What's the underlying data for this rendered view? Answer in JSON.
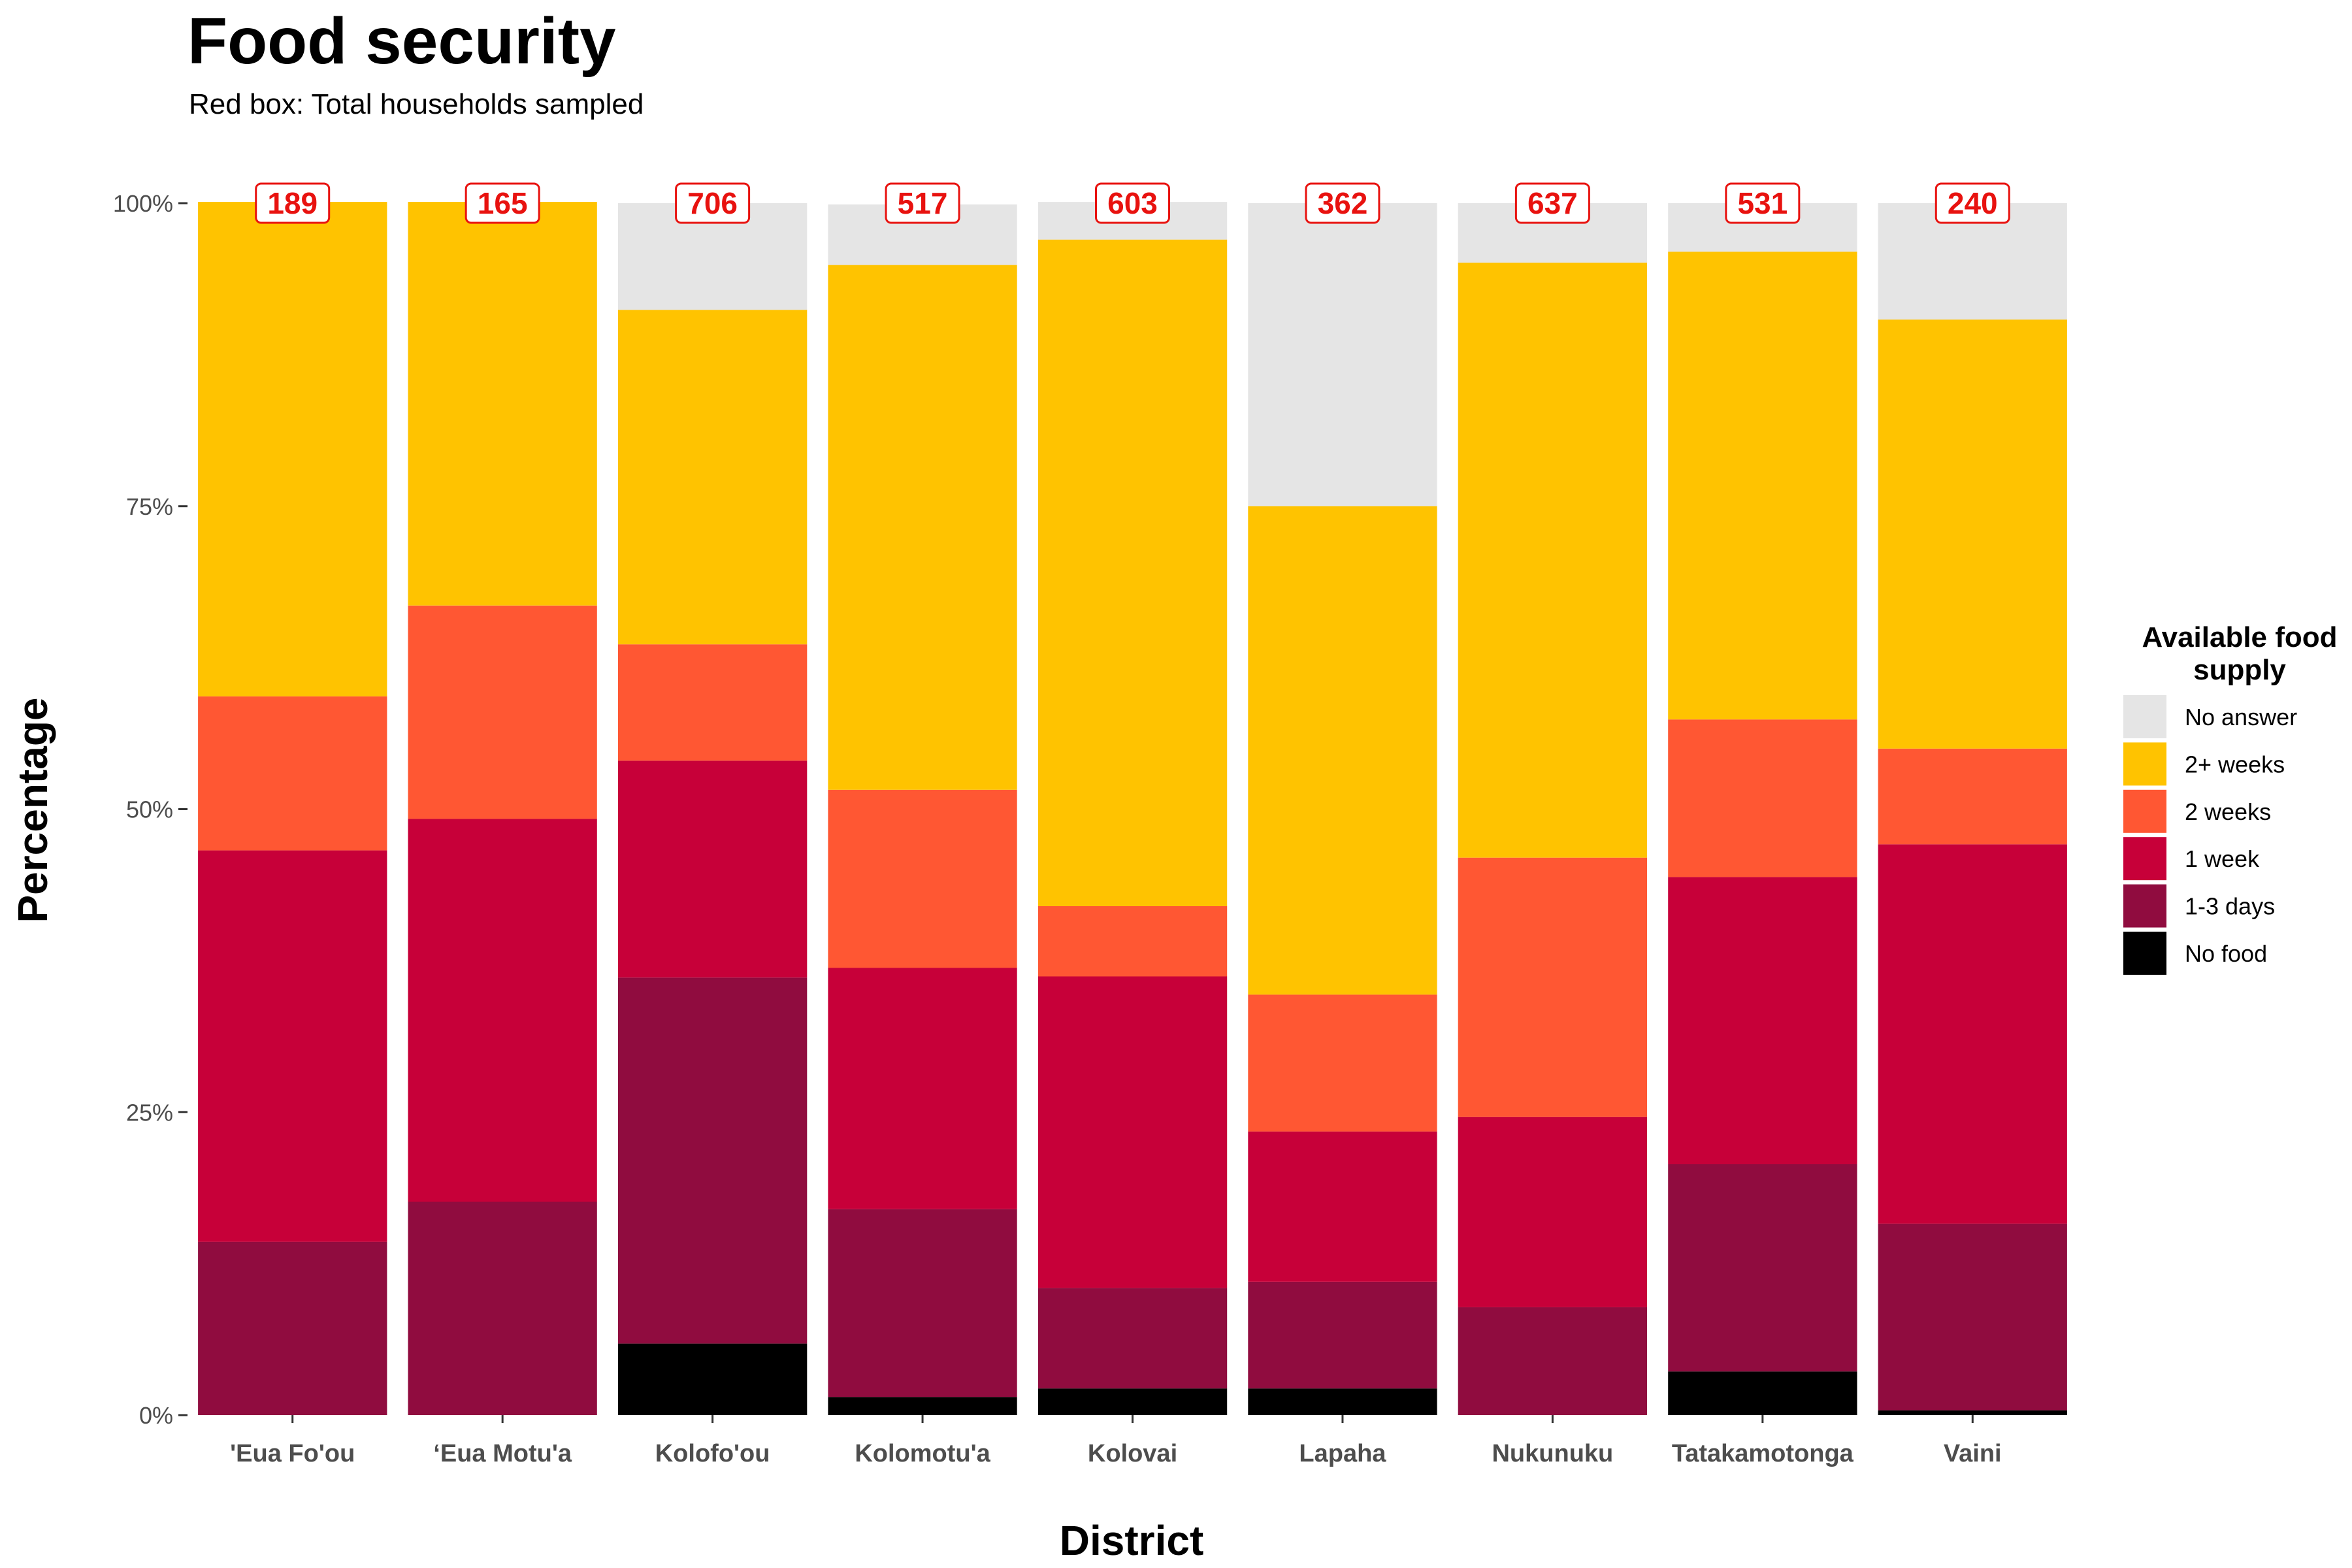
{
  "chart_data": {
    "type": "bar",
    "stacked": true,
    "normalized": true,
    "title": "Food security",
    "subtitle": "Red box: Total households sampled",
    "xlabel": "District",
    "ylabel": "Percentage",
    "ylim": [
      0,
      100
    ],
    "yticks": [
      "0%",
      "25%",
      "50%",
      "75%",
      "100%"
    ],
    "grid": false,
    "legend": {
      "title": "Available food supply",
      "position": "right"
    },
    "categories": [
      "'Eua Fo'ou",
      "‘Eua Motu'a",
      "Kolofo'ou",
      "Kolomotu'a",
      "Kolovai",
      "Lapaha",
      "Nukunuku",
      "Tatakamotonga",
      "Vaini"
    ],
    "totals": [
      189,
      165,
      706,
      517,
      603,
      362,
      637,
      531,
      240
    ],
    "series": [
      {
        "name": "No answer",
        "color": "#e5e5e5",
        "values": [
          0.0,
          0.0,
          8.8,
          5.0,
          3.1,
          25.0,
          4.9,
          4.0,
          9.6
        ]
      },
      {
        "name": "2+ weeks",
        "color": "#ffc300",
        "values": [
          40.8,
          33.3,
          27.6,
          43.3,
          55.0,
          40.3,
          49.1,
          38.6,
          35.4
        ]
      },
      {
        "name": "2 weeks",
        "color": "#ff5733",
        "values": [
          12.7,
          17.6,
          9.6,
          14.7,
          5.8,
          11.3,
          21.4,
          13.0,
          7.9
        ]
      },
      {
        "name": "1 week",
        "color": "#c70039",
        "values": [
          32.3,
          31.6,
          17.9,
          19.9,
          25.7,
          12.4,
          15.7,
          23.7,
          31.3
        ]
      },
      {
        "name": "1-3 days",
        "color": "#900c3f",
        "values": [
          14.3,
          17.6,
          30.2,
          15.5,
          8.3,
          8.8,
          8.9,
          17.1,
          15.4
        ]
      },
      {
        "name": "No food",
        "color": "#000000",
        "values": [
          0.0,
          0.0,
          5.9,
          1.5,
          2.2,
          2.2,
          0.0,
          3.6,
          0.4
        ]
      }
    ]
  }
}
